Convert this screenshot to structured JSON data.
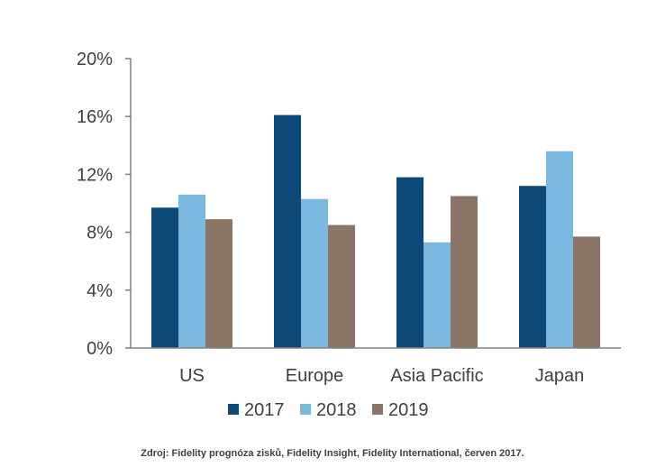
{
  "chart_data": {
    "type": "bar",
    "title": "",
    "xlabel": "",
    "ylabel": "",
    "categories": [
      "US",
      "Europe",
      "Asia Pacific",
      "Japan"
    ],
    "series": [
      {
        "name": "2017",
        "color": "#0d4a7a",
        "values": [
          9.7,
          16.1,
          11.8,
          11.2
        ]
      },
      {
        "name": "2018",
        "color": "#7ab8e0",
        "values": [
          10.6,
          10.3,
          7.3,
          13.6
        ]
      },
      {
        "name": "2019",
        "color": "#8b7566",
        "values": [
          8.9,
          8.5,
          10.5,
          7.7
        ]
      }
    ],
    "ylim": [
      0,
      20
    ],
    "yticks": [
      0,
      4,
      8,
      12,
      16,
      20
    ],
    "ytick_labels": [
      "0%",
      "4%",
      "8%",
      "12%",
      "16%",
      "20%"
    ],
    "grid": false,
    "legend_position": "bottom",
    "axis_color": "#808080"
  },
  "source": "Zdroj: Fidelity prognóza zisků, Fidelity Insight, Fidelity International, červen 2017."
}
